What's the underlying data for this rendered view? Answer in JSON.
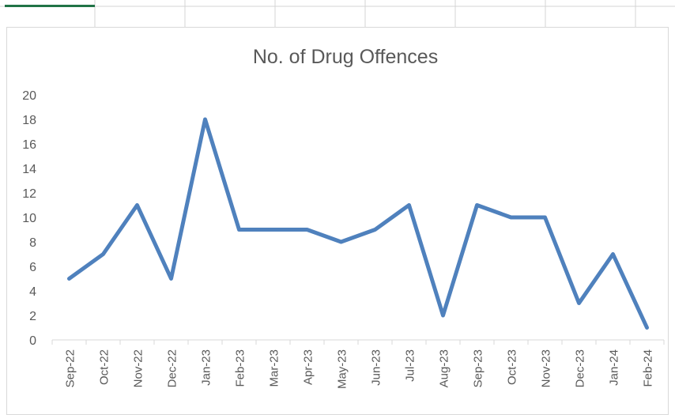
{
  "colors": {
    "series": "#4f81bd",
    "axis_text": "#595959",
    "axis_line": "#d9d9d9",
    "selected_cell": "#217346"
  },
  "chart_data": {
    "type": "line",
    "title": "No. of Drug Offences",
    "xlabel": "",
    "ylabel": "",
    "categories": [
      "Sep-22",
      "Oct-22",
      "Nov-22",
      "Dec-22",
      "Jan-23",
      "Feb-23",
      "Mar-23",
      "Apr-23",
      "May-23",
      "Jun-23",
      "Jul-23",
      "Aug-23",
      "Sep-23",
      "Oct-23",
      "Nov-23",
      "Dec-23",
      "Jan-24",
      "Feb-24"
    ],
    "series": [
      {
        "values": [
          5,
          7,
          11,
          5,
          18,
          9,
          9,
          9,
          8,
          9,
          11,
          2,
          11,
          10,
          10,
          3,
          7,
          1
        ]
      }
    ],
    "ylim": [
      0,
      20
    ],
    "yticks": [
      0,
      2,
      4,
      6,
      8,
      10,
      12,
      14,
      16,
      18,
      20
    ],
    "grid": false,
    "legend": "none"
  }
}
